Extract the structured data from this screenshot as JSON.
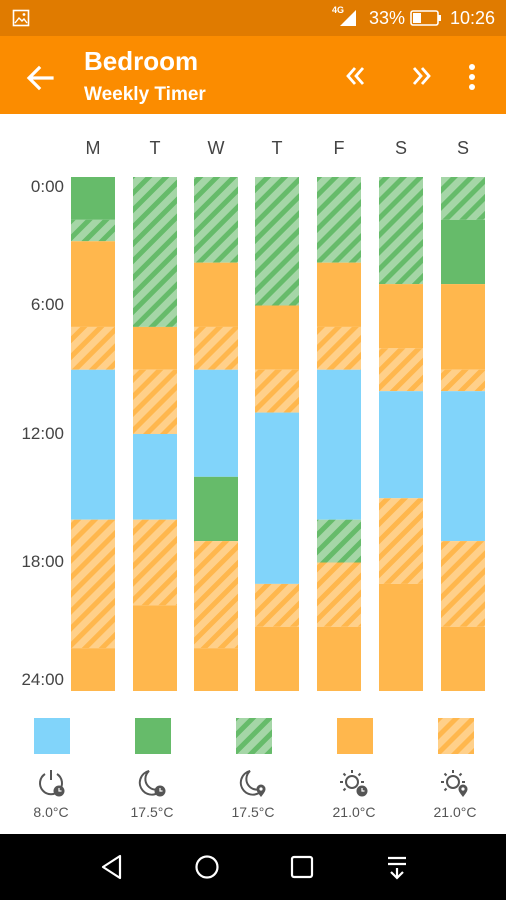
{
  "status_bar": {
    "network": "4G",
    "battery": "33%",
    "time": "10:26"
  },
  "app_bar": {
    "title": "Bedroom",
    "subtitle": "Weekly Timer"
  },
  "days": [
    "M",
    "T",
    "W",
    "T",
    "F",
    "S",
    "S"
  ],
  "time_labels": [
    "0:00",
    "6:00",
    "12:00",
    "18:00",
    "24:00"
  ],
  "colors": {
    "off": "#81d4fa",
    "night": "#66bb6a",
    "night_stripe": "#a5d6a7",
    "day": "#ffb74d",
    "day_stripe": "#ffd08a"
  },
  "legend": [
    {
      "mode": "off",
      "icon": "power-clock-icon",
      "temp": "8.0°C"
    },
    {
      "mode": "night",
      "icon": "moon-clock-icon",
      "temp": "17.5°C"
    },
    {
      "mode": "night_stripe",
      "icon": "moon-location-icon",
      "temp": "17.5°C"
    },
    {
      "mode": "day",
      "icon": "sun-clock-icon",
      "temp": "21.0°C"
    },
    {
      "mode": "day_stripe",
      "icon": "sun-location-icon",
      "temp": "21.0°C"
    }
  ],
  "schedule": [
    [
      {
        "start": 0,
        "end": 2,
        "mode": "night"
      },
      {
        "start": 2,
        "end": 3,
        "mode": "night_stripe"
      },
      {
        "start": 3,
        "end": 7,
        "mode": "day"
      },
      {
        "start": 7,
        "end": 9,
        "mode": "day_stripe"
      },
      {
        "start": 9,
        "end": 16,
        "mode": "off"
      },
      {
        "start": 16,
        "end": 22,
        "mode": "day_stripe"
      },
      {
        "start": 22,
        "end": 24,
        "mode": "day"
      }
    ],
    [
      {
        "start": 0,
        "end": 7,
        "mode": "night_stripe"
      },
      {
        "start": 7,
        "end": 9,
        "mode": "day"
      },
      {
        "start": 9,
        "end": 12,
        "mode": "day_stripe"
      },
      {
        "start": 12,
        "end": 16,
        "mode": "off"
      },
      {
        "start": 16,
        "end": 20,
        "mode": "day_stripe"
      },
      {
        "start": 20,
        "end": 24,
        "mode": "day"
      }
    ],
    [
      {
        "start": 0,
        "end": 4,
        "mode": "night_stripe"
      },
      {
        "start": 4,
        "end": 7,
        "mode": "day"
      },
      {
        "start": 7,
        "end": 9,
        "mode": "day_stripe"
      },
      {
        "start": 9,
        "end": 14,
        "mode": "off"
      },
      {
        "start": 14,
        "end": 17,
        "mode": "night"
      },
      {
        "start": 17,
        "end": 22,
        "mode": "day_stripe"
      },
      {
        "start": 22,
        "end": 24,
        "mode": "day"
      }
    ],
    [
      {
        "start": 0,
        "end": 6,
        "mode": "night_stripe"
      },
      {
        "start": 6,
        "end": 9,
        "mode": "day"
      },
      {
        "start": 9,
        "end": 11,
        "mode": "day_stripe"
      },
      {
        "start": 11,
        "end": 19,
        "mode": "off"
      },
      {
        "start": 19,
        "end": 21,
        "mode": "day_stripe"
      },
      {
        "start": 21,
        "end": 24,
        "mode": "day"
      }
    ],
    [
      {
        "start": 0,
        "end": 4,
        "mode": "night_stripe"
      },
      {
        "start": 4,
        "end": 7,
        "mode": "day"
      },
      {
        "start": 7,
        "end": 9,
        "mode": "day_stripe"
      },
      {
        "start": 9,
        "end": 16,
        "mode": "off"
      },
      {
        "start": 16,
        "end": 18,
        "mode": "night_stripe"
      },
      {
        "start": 18,
        "end": 21,
        "mode": "day_stripe"
      },
      {
        "start": 21,
        "end": 24,
        "mode": "day"
      }
    ],
    [
      {
        "start": 0,
        "end": 5,
        "mode": "night_stripe"
      },
      {
        "start": 5,
        "end": 8,
        "mode": "day"
      },
      {
        "start": 8,
        "end": 10,
        "mode": "day_stripe"
      },
      {
        "start": 10,
        "end": 15,
        "mode": "off"
      },
      {
        "start": 15,
        "end": 19,
        "mode": "day_stripe"
      },
      {
        "start": 19,
        "end": 24,
        "mode": "day"
      }
    ],
    [
      {
        "start": 0,
        "end": 2,
        "mode": "night_stripe"
      },
      {
        "start": 2,
        "end": 5,
        "mode": "night"
      },
      {
        "start": 5,
        "end": 9,
        "mode": "day"
      },
      {
        "start": 9,
        "end": 10,
        "mode": "day_stripe"
      },
      {
        "start": 10,
        "end": 17,
        "mode": "off"
      },
      {
        "start": 17,
        "end": 21,
        "mode": "day_stripe"
      },
      {
        "start": 21,
        "end": 24,
        "mode": "day"
      }
    ]
  ]
}
